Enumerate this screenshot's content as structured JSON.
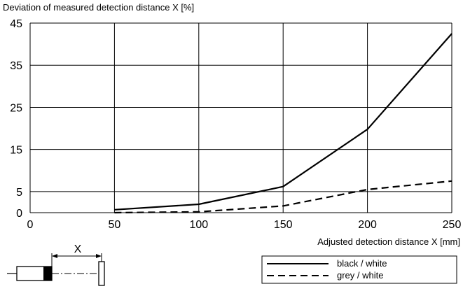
{
  "chart_data": {
    "type": "line",
    "title": "",
    "ylabel": "Deviation of  measured detection distance X [%]",
    "xlabel": "Adjusted detection distance X [mm]",
    "xlim": [
      0,
      250
    ],
    "ylim": [
      0,
      45
    ],
    "x_ticks": [
      0,
      50,
      100,
      150,
      200,
      250
    ],
    "y_ticks": [
      0,
      5,
      15,
      25,
      35,
      45
    ],
    "grid": true,
    "legend_position": "bottom-right",
    "series": [
      {
        "name": "black / white",
        "style": "solid",
        "color": "#000000",
        "x": [
          50,
          100,
          150,
          200,
          250
        ],
        "y": [
          0.7,
          2,
          6.2,
          19.8,
          42.5
        ]
      },
      {
        "name": "grey / white",
        "style": "dashed",
        "color": "#000000",
        "x": [
          50,
          100,
          150,
          200,
          250
        ],
        "y": [
          0,
          0.2,
          1.6,
          5.5,
          7.5
        ]
      }
    ]
  },
  "diagram": {
    "dimension_label": "X"
  }
}
